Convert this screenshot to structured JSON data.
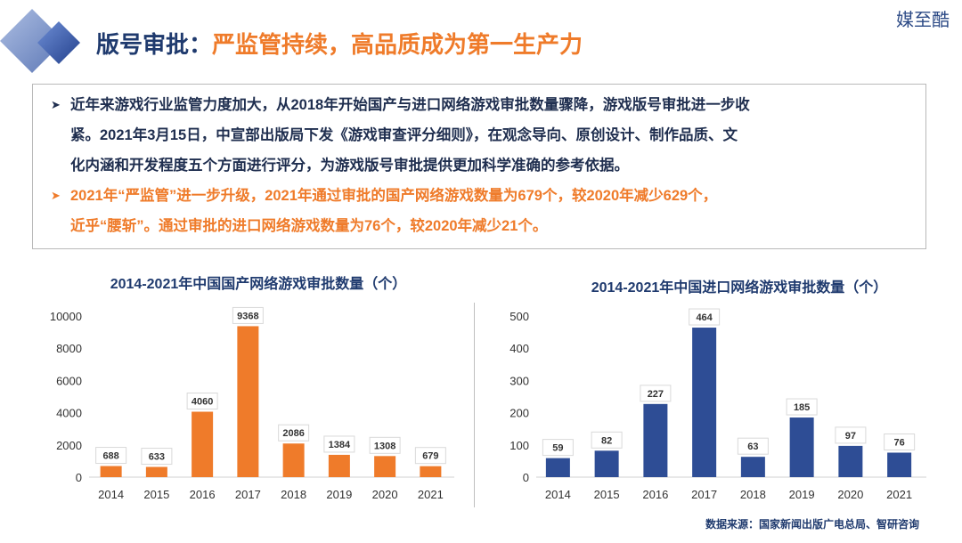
{
  "header": {
    "title_main": "版号审批：",
    "title_sub": "严监管持续，高品质成为第一生产力",
    "brand": "媒至酷"
  },
  "bullets": [
    {
      "lines": [
        "近年来游戏行业监管力度加大，从2018年开始国产与进口网络游戏审批数量骤降，游戏版号审批进一步收",
        "紧。2021年3月15日，中宣部出版局下发《游戏审查评分细则》，在观念导向、原创设计、制作品质、文",
        "化内涵和开发程度五个方面进行评分，为游戏版号审批提供更加科学准确的参考依据。"
      ],
      "color": "#1f2e4f"
    },
    {
      "lines": [
        "2021年“严监管”进一步升级，2021年通过审批的国产网络游戏数量为679个，较2020年减少629个，",
        "近乎“腰斩”。通过审批的进口网络游戏数量为76个，较2020年减少21个。"
      ],
      "color": "#ef7b2a"
    }
  ],
  "chart_data": [
    {
      "type": "bar",
      "title": "2014-2021年中国国产网络游戏审批数量（个）",
      "categories": [
        "2014",
        "2015",
        "2016",
        "2017",
        "2018",
        "2019",
        "2020",
        "2021"
      ],
      "values": [
        688,
        633,
        4060,
        9368,
        2086,
        1384,
        1308,
        679
      ],
      "ylim": [
        0,
        10000
      ],
      "yticks": [
        0,
        2000,
        4000,
        6000,
        8000,
        10000
      ],
      "color": "#ef7b2a",
      "xlabel": "",
      "ylabel": "",
      "grid": false
    },
    {
      "type": "bar",
      "title": "2014-2021年中国进口网络游戏审批数量（个）",
      "categories": [
        "2014",
        "2015",
        "2016",
        "2017",
        "2018",
        "2019",
        "2020",
        "2021"
      ],
      "values": [
        59,
        82,
        227,
        464,
        63,
        185,
        97,
        76
      ],
      "ylim": [
        0,
        500
      ],
      "yticks": [
        0,
        100,
        200,
        300,
        400,
        500
      ],
      "color": "#2e4d95",
      "xlabel": "",
      "ylabel": "",
      "grid": false
    }
  ],
  "source": "数据来源：国家新闻出版广电总局、智研咨询"
}
